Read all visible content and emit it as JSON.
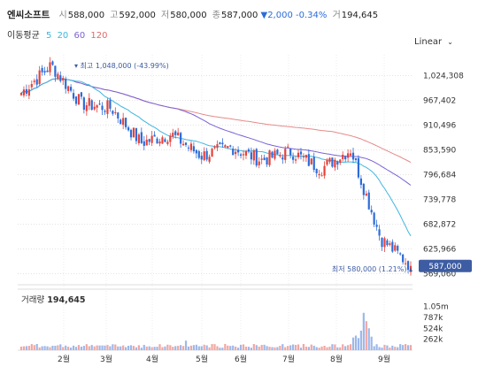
{
  "header": {
    "stock_name": "엔씨소프트",
    "open_label": "시",
    "open": "588,000",
    "high_label": "고",
    "high": "592,000",
    "low_label": "저",
    "low": "580,000",
    "close_label": "종",
    "close": "587,000",
    "change": "▼2,000 -0.34%",
    "volume_label": "거",
    "volume": "194,645"
  },
  "moving_average": {
    "title": "이동평균",
    "periods": [
      {
        "label": "5",
        "color": "#3fb6e0"
      },
      {
        "label": "20",
        "color": "#3fb6e0"
      },
      {
        "label": "60",
        "color": "#7a62d6"
      },
      {
        "label": "120",
        "color": "#e06a6a"
      }
    ]
  },
  "scale_selector": {
    "label": "Linear",
    "icon": "chevron-down-icon"
  },
  "colors": {
    "up": "#e5423b",
    "down": "#2d6cd8",
    "ma5": "#3fb6e0",
    "ma20": "#3fb6e0",
    "ma60": "#7a62d6",
    "ma120": "#e58a8a",
    "current_tag": "#3d5ca3"
  },
  "chart_data": [
    {
      "type": "candlestick",
      "x_labels": [
        "2월",
        "3월",
        "4월",
        "5월",
        "6월",
        "7월",
        "8월",
        "9월"
      ],
      "y_ticks": [
        "1,024,308",
        "967,402",
        "910,496",
        "853,590",
        "796,684",
        "739,778",
        "682,872",
        "625,966",
        "569,060"
      ],
      "y_tick_values": [
        1024308,
        967402,
        910496,
        853590,
        796684,
        739778,
        682872,
        625966,
        569060
      ],
      "ylim": [
        560000,
        1060000
      ],
      "current_price_label": "587,000",
      "current_price": 587000,
      "max_annotation": "최고 1,048,000 (-43.99%)",
      "max_value": 1048000,
      "min_annotation": "최저 580,000 (1.21%)",
      "min_value": 580000,
      "approx_close_path": [
        [
          "1월 말",
          985000
        ],
        [
          "2월 중",
          1048000
        ],
        [
          "3월 초",
          960000
        ],
        [
          "3월 말",
          950000
        ],
        [
          "4월 초",
          870000
        ],
        [
          "4월 말",
          890000
        ],
        [
          "5월",
          840000
        ],
        [
          "6월",
          860000
        ],
        [
          "7월",
          830000
        ],
        [
          "7월 말",
          850000
        ],
        [
          "8월 중",
          810000
        ],
        [
          "8월 말",
          855000
        ],
        [
          "9월 초",
          650000
        ],
        [
          "9월 중",
          587000
        ]
      ],
      "moving_averages": {
        "ma20_end": 660000,
        "ma60_end": 765000,
        "ma120_end": 805000
      }
    },
    {
      "type": "bar",
      "title": "거래량",
      "last_value_label": "194,645",
      "y_ticks": [
        "1.05m",
        "787k",
        "524k",
        "262k"
      ],
      "y_tick_values": [
        1050000,
        787000,
        524000,
        262000
      ],
      "ylim": [
        0,
        1150000
      ]
    }
  ]
}
